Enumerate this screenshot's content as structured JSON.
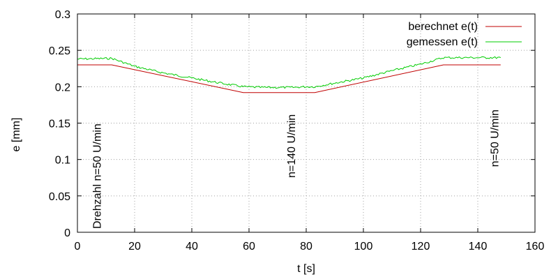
{
  "chart_data": {
    "type": "line",
    "xlabel": "t [s]",
    "ylabel": "e [mm]",
    "xlim": [
      0,
      160
    ],
    "ylim": [
      0,
      0.3
    ],
    "xticks": [
      0,
      20,
      40,
      60,
      80,
      100,
      120,
      140,
      160
    ],
    "yticks": [
      0,
      0.05,
      0.1,
      0.15,
      0.2,
      0.25,
      0.3
    ],
    "xtick_labels": [
      "0",
      "20",
      "40",
      "60",
      "80",
      "100",
      "120",
      "140",
      "160"
    ],
    "ytick_labels": [
      "0",
      "0.05",
      "0.1",
      "0.15",
      "0.2",
      "0.25",
      "0.3"
    ],
    "grid": true,
    "legend_position": "top-right",
    "series": [
      {
        "name": "berechnet e(t)",
        "color": "#c00000",
        "x": [
          0,
          12,
          58,
          83,
          128,
          148
        ],
        "y": [
          0.23,
          0.23,
          0.192,
          0.192,
          0.23,
          0.23
        ]
      },
      {
        "name": "gemessen e(t)",
        "color": "#00cc00",
        "x": [
          0,
          12,
          20,
          30,
          40,
          50,
          58,
          65,
          70,
          75,
          80,
          83,
          90,
          100,
          110,
          120,
          128,
          135,
          140,
          148
        ],
        "y": [
          0.238,
          0.239,
          0.228,
          0.219,
          0.212,
          0.205,
          0.2,
          0.199,
          0.199,
          0.199,
          0.2,
          0.2,
          0.205,
          0.212,
          0.222,
          0.231,
          0.24,
          0.24,
          0.24,
          0.24
        ]
      }
    ],
    "annotations": [
      {
        "text": "Drehzahl n=50 U/min",
        "x": 4,
        "y": 0
      },
      {
        "text": "n=140 U/min",
        "x": 72,
        "y": 0.07
      },
      {
        "text": "n=50 U/min",
        "x": 143,
        "y": 0.085
      }
    ]
  }
}
